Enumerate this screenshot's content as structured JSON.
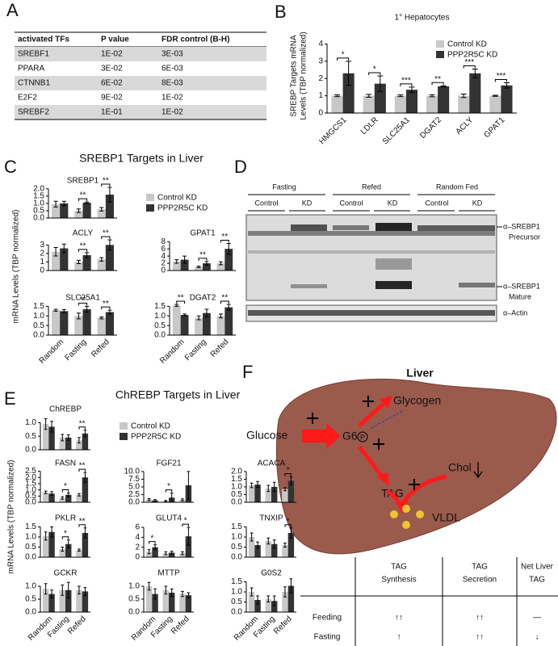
{
  "panel_labels": [
    "A",
    "B",
    "C",
    "D",
    "E",
    "F"
  ],
  "table": {
    "columns": [
      "activated TFs",
      "P value",
      "FDR control (B-H)"
    ],
    "rows": [
      [
        "SREBF1",
        "1E-02",
        "3E-03"
      ],
      [
        "PPARA",
        "3E-02",
        "6E-03"
      ],
      [
        "CTNNB1",
        "6E-02",
        "8E-03"
      ],
      [
        "E2F2",
        "9E-02",
        "1E-02"
      ],
      [
        "SREBF2",
        "1E-01",
        "1E-02"
      ]
    ]
  },
  "chart_data": [
    {
      "type": "bar",
      "title": "1° Hepatocytes",
      "ylabel": [
        "SREBP Targets mRNA",
        "Levels (TBP normalized)"
      ],
      "categories": [
        "HMGCS1",
        "LDLR",
        "SLC25A1",
        "DGAT2",
        "ACLY",
        "GPAT1"
      ],
      "ylim": [
        0,
        4.3
      ],
      "yticks": [
        0,
        1,
        2,
        3,
        4
      ],
      "legend": "upper right",
      "series": [
        {
          "name": "Control KD",
          "color": "#c8c8c8",
          "values": [
            1,
            1,
            1,
            1,
            1,
            1
          ],
          "errors": [
            0.05,
            0.08,
            0.05,
            0.06,
            0.1,
            0.03
          ]
        },
        {
          "name": "PPP2R5C KD",
          "color": "#333333",
          "values": [
            2.3,
            1.7,
            1.35,
            1.55,
            2.3,
            1.6
          ],
          "errors": [
            0.7,
            0.45,
            0.15,
            0.03,
            0.25,
            0.15
          ]
        }
      ],
      "stars": [
        "*",
        "*",
        "***",
        "**",
        "***",
        "***"
      ]
    },
    {
      "type": "bar",
      "heading": "SREBP1 Targets in Liver",
      "ylabel": "mRNA Levels (TBP normalized)",
      "title": "SREBP1",
      "categories": [
        null,
        null,
        null
      ],
      "ylim": [
        0,
        2.1
      ],
      "yticks": [
        {
          "value": 0,
          "label": "0.0"
        },
        0.5,
        {
          "value": 1,
          "label": "1.0"
        },
        1.5,
        {
          "value": 2,
          "label": "2.0"
        }
      ],
      "legend": "right",
      "series": [
        {
          "name": "Control KD",
          "color": "#c8c8c8",
          "values": [
            0.95,
            0.5,
            0.6
          ],
          "errors": [
            0.2,
            0.12,
            0.12
          ]
        },
        {
          "name": "PPP2R5C KD",
          "color": "#333333",
          "values": [
            1.0,
            1.05,
            1.6
          ],
          "errors": [
            0.15,
            0.05,
            0.5
          ]
        }
      ],
      "stars": [
        null,
        "**",
        "**"
      ]
    },
    {
      "type": "bar",
      "title": "ACLY",
      "categories": [
        null,
        null,
        null
      ],
      "ylim": [
        0,
        3.6
      ],
      "yticks": [
        0,
        1,
        2,
        3
      ],
      "series": [
        {
          "color": "#c8c8c8",
          "values": [
            2.2,
            1.0,
            1.3
          ],
          "errors": [
            0.5,
            0.2,
            0.2
          ]
        },
        {
          "color": "#333333",
          "values": [
            2.6,
            1.8,
            3.0
          ],
          "errors": [
            0.5,
            0.3,
            0.6
          ]
        }
      ],
      "stars": [
        null,
        "**",
        "**"
      ]
    },
    {
      "type": "bar",
      "title": "GPAT1",
      "categories": [
        null,
        null,
        null
      ],
      "ylim": [
        0,
        8.5
      ],
      "yticks": [
        0,
        2,
        4,
        6,
        8
      ],
      "series": [
        {
          "color": "#c8c8c8",
          "values": [
            2.5,
            1.0,
            2.0
          ],
          "errors": [
            0.5,
            0.2,
            0.4
          ]
        },
        {
          "color": "#333333",
          "values": [
            3.0,
            2.0,
            6.0
          ],
          "errors": [
            1.0,
            0.5,
            1.5
          ]
        }
      ],
      "stars": [
        null,
        "**",
        "**"
      ]
    },
    {
      "type": "bar",
      "title": "SLC25A1",
      "categories": [
        "Random",
        "Fasting",
        "Refed"
      ],
      "ylim": [
        0,
        1.6
      ],
      "yticks": [
        {
          "value": 0,
          "label": "0.0"
        },
        0.5,
        {
          "value": 1,
          "label": "1.0"
        },
        1.5
      ],
      "series": [
        {
          "color": "#c8c8c8",
          "values": [
            1.3,
            1.0,
            0.9
          ],
          "errors": [
            0.05,
            0.15,
            0.05
          ]
        },
        {
          "color": "#333333",
          "values": [
            1.25,
            1.35,
            1.2
          ],
          "errors": [
            0.08,
            0.15,
            0.1
          ]
        }
      ],
      "stars": [
        null,
        "**",
        "**"
      ]
    },
    {
      "type": "bar",
      "title": "DGAT2",
      "categories": [
        "Random",
        "Fasting",
        "Refed"
      ],
      "ylim": [
        0,
        1.6
      ],
      "yticks": [
        {
          "value": 0,
          "label": "0.0"
        },
        0.5,
        {
          "value": 1,
          "label": "1.0"
        },
        1.5
      ],
      "series": [
        {
          "color": "#c8c8c8",
          "values": [
            1.55,
            0.9,
            1.0
          ],
          "errors": [
            0.05,
            0.1,
            0.1
          ]
        },
        {
          "color": "#333333",
          "values": [
            1.05,
            1.15,
            1.45
          ],
          "errors": [
            0.05,
            0.2,
            0.15
          ]
        }
      ],
      "stars": [
        "**",
        null,
        "**"
      ]
    },
    {
      "type": "bar",
      "heading": "ChREBP Targets in Liver",
      "ylabel": "mRNA Levels (TBP normalized)",
      "title": "ChREBP",
      "categories": [
        null,
        null,
        null
      ],
      "ylim": [
        0,
        1.25
      ],
      "yticks": [
        {
          "value": 0,
          "label": "0.0"
        },
        0.5,
        {
          "value": 1,
          "label": "1.0"
        }
      ],
      "legend": "right",
      "series": [
        {
          "name": "Control KD",
          "color": "#c8c8c8",
          "values": [
            0.95,
            0.45,
            0.35
          ],
          "errors": [
            0.2,
            0.12,
            0.1
          ]
        },
        {
          "name": "PPP2R5C KD",
          "color": "#333333",
          "values": [
            0.85,
            0.45,
            0.6
          ],
          "errors": [
            0.2,
            0.1,
            0.12
          ]
        }
      ],
      "stars": [
        null,
        null,
        "**"
      ]
    },
    {
      "type": "bar",
      "title": "FASN",
      "categories": [
        null,
        null,
        null
      ],
      "ylim": [
        0,
        2.6
      ],
      "yticks": [
        {
          "value": 0,
          "label": "0.0"
        },
        0.5,
        {
          "value": 1,
          "label": "1.0"
        },
        1.5,
        {
          "value": 2,
          "label": "2.0"
        },
        2.5
      ],
      "series": [
        {
          "color": "#c8c8c8",
          "values": [
            0.8,
            0.35,
            0.6
          ],
          "errors": [
            0.1,
            0.1,
            0.1
          ]
        },
        {
          "color": "#333333",
          "values": [
            0.7,
            0.6,
            2.0
          ],
          "errors": [
            0.15,
            0.15,
            0.4
          ]
        }
      ],
      "stars": [
        null,
        "*",
        "**"
      ]
    },
    {
      "type": "bar",
      "title": "FGF21",
      "categories": [
        null,
        null,
        null
      ],
      "ylim": [
        0,
        10.5
      ],
      "yticks": [
        {
          "value": 0,
          "label": "0.0"
        },
        2.5,
        {
          "value": 5,
          "label": "5.0"
        },
        7.5,
        {
          "value": 10,
          "label": "10.0"
        }
      ],
      "series": [
        {
          "color": "#c8c8c8",
          "values": [
            0.9,
            0.4,
            0.8
          ],
          "errors": [
            0.3,
            0.2,
            0.3
          ]
        },
        {
          "color": "#333333",
          "values": [
            0.6,
            1.5,
            5.5
          ],
          "errors": [
            0.3,
            1.5,
            4.5
          ]
        }
      ],
      "stars": [
        null,
        "*",
        null
      ]
    },
    {
      "type": "bar",
      "title": "ACACA",
      "categories": [
        null,
        null,
        null
      ],
      "ylim": [
        0,
        2.1
      ],
      "yticks": [
        {
          "value": 0,
          "label": "0.0"
        },
        0.5,
        {
          "value": 1,
          "label": "1.0"
        },
        1.5,
        {
          "value": 2,
          "label": "2.0"
        }
      ],
      "series": [
        {
          "color": "#c8c8c8",
          "values": [
            1.1,
            0.9,
            0.85
          ],
          "errors": [
            0.15,
            0.2,
            0.1
          ]
        },
        {
          "color": "#333333",
          "values": [
            1.15,
            1.0,
            1.4
          ],
          "errors": [
            0.2,
            0.3,
            0.25
          ]
        }
      ],
      "stars": [
        null,
        null,
        "*"
      ]
    },
    {
      "type": "bar",
      "title": "PKLR",
      "categories": [
        null,
        null,
        null
      ],
      "ylim": [
        0,
        1.6
      ],
      "yticks": [
        {
          "value": 0,
          "label": "0.0"
        },
        0.5,
        {
          "value": 1,
          "label": "1.0"
        },
        1.5
      ],
      "series": [
        {
          "color": "#c8c8c8",
          "values": [
            1.05,
            0.4,
            0.35
          ],
          "errors": [
            0.2,
            0.1,
            0.05
          ]
        },
        {
          "color": "#333333",
          "values": [
            1.25,
            0.65,
            1.2
          ],
          "errors": [
            0.25,
            0.2,
            0.25
          ]
        }
      ],
      "stars": [
        null,
        "*",
        "**"
      ]
    },
    {
      "type": "bar",
      "title": "GLUT4",
      "categories": [
        null,
        null,
        null
      ],
      "ylim": [
        0,
        6.5
      ],
      "yticks": [
        0,
        2,
        4,
        6
      ],
      "series": [
        {
          "color": "#c8c8c8",
          "values": [
            1.1,
            0.8,
            0.8
          ],
          "errors": [
            0.4,
            0.3,
            0.3
          ]
        },
        {
          "color": "#333333",
          "values": [
            2.0,
            0.9,
            4.2
          ],
          "errors": [
            0.5,
            0.3,
            1.8
          ]
        }
      ],
      "stars": [
        "*",
        null,
        "*"
      ]
    },
    {
      "type": "bar",
      "title": "TNXIP",
      "categories": [
        null,
        null,
        null
      ],
      "ylim": [
        0,
        1.6
      ],
      "yticks": [
        {
          "value": 0,
          "label": "0.0"
        },
        0.5,
        {
          "value": 1,
          "label": "1.0"
        },
        1.5
      ],
      "series": [
        {
          "color": "#c8c8c8",
          "values": [
            1.0,
            0.8,
            0.6
          ],
          "errors": [
            0.2,
            0.15,
            0.1
          ]
        },
        {
          "color": "#333333",
          "values": [
            0.6,
            0.65,
            1.2
          ],
          "errors": [
            0.15,
            0.2,
            0.25
          ]
        }
      ],
      "stars": [
        null,
        null,
        "*"
      ]
    },
    {
      "type": "bar",
      "title": "GCKR",
      "categories": [
        "Random",
        "Fasting",
        "Refed"
      ],
      "ylim": [
        0,
        1.25
      ],
      "yticks": [
        {
          "value": 0,
          "label": "0.0"
        },
        0.5,
        {
          "value": 1,
          "label": "1.0"
        }
      ],
      "series": [
        {
          "color": "#c8c8c8",
          "values": [
            0.9,
            0.85,
            0.85
          ],
          "errors": [
            0.2,
            0.2,
            0.15
          ]
        },
        {
          "color": "#333333",
          "values": [
            0.7,
            0.85,
            0.8
          ],
          "errors": [
            0.15,
            0.3,
            0.15
          ]
        }
      ]
    },
    {
      "type": "bar",
      "title": "MTTP",
      "categories": [
        "Random",
        "Fasting",
        "Refed"
      ],
      "ylim": [
        0,
        1.25
      ],
      "yticks": [
        {
          "value": 0,
          "label": "0.0"
        },
        0.5,
        {
          "value": 1,
          "label": "1.0"
        }
      ],
      "series": [
        {
          "color": "#c8c8c8",
          "values": [
            1.0,
            0.85,
            0.7
          ],
          "errors": [
            0.15,
            0.15,
            0.1
          ]
        },
        {
          "color": "#333333",
          "values": [
            0.7,
            0.75,
            0.65
          ],
          "errors": [
            0.2,
            0.15,
            0.1
          ]
        }
      ]
    },
    {
      "type": "bar",
      "title": "G0S2",
      "categories": [
        "Random",
        "Fasting",
        "Refed"
      ],
      "ylim": [
        0,
        1.6
      ],
      "yticks": [
        {
          "value": 0,
          "label": "0.0"
        },
        0.5,
        {
          "value": 1,
          "label": "1.0"
        },
        1.5
      ],
      "series": [
        {
          "color": "#c8c8c8",
          "values": [
            1.0,
            0.65,
            1.0
          ],
          "errors": [
            0.2,
            0.15,
            0.25
          ]
        },
        {
          "color": "#333333",
          "values": [
            0.6,
            0.55,
            1.3
          ],
          "errors": [
            0.2,
            0.25,
            0.35
          ]
        }
      ]
    }
  ],
  "blot": {
    "groups": [
      "Fasting",
      "Refed",
      "Random Fed"
    ],
    "lanes": [
      "Control",
      "KD",
      "Control",
      "KD",
      "Control",
      "KD"
    ],
    "bands": [
      [
        "α–SREBP1",
        "Precursor"
      ],
      [
        "α–SREBP1",
        "Mature"
      ],
      [
        "α–Actin"
      ]
    ]
  },
  "diagram": {
    "title": "Liver",
    "labels": {
      "glucose": "Glucose",
      "g6": "G6",
      "phosphate": "P",
      "glycogen": "Glycogen",
      "tag": "TAG",
      "chol": "Chol",
      "vldl": "VLDL"
    }
  },
  "summary": {
    "columns": [
      [
        "TAG",
        "Synthesis"
      ],
      [
        "TAG",
        "Secretion"
      ],
      [
        "Net Liver",
        "TAG"
      ]
    ],
    "rows": [
      {
        "label": "Feeding",
        "cells": [
          "↑↑",
          "↑↑",
          "—"
        ]
      },
      {
        "label": "Fasting",
        "cells": [
          "↑",
          "↑↑",
          "↓"
        ]
      }
    ]
  }
}
